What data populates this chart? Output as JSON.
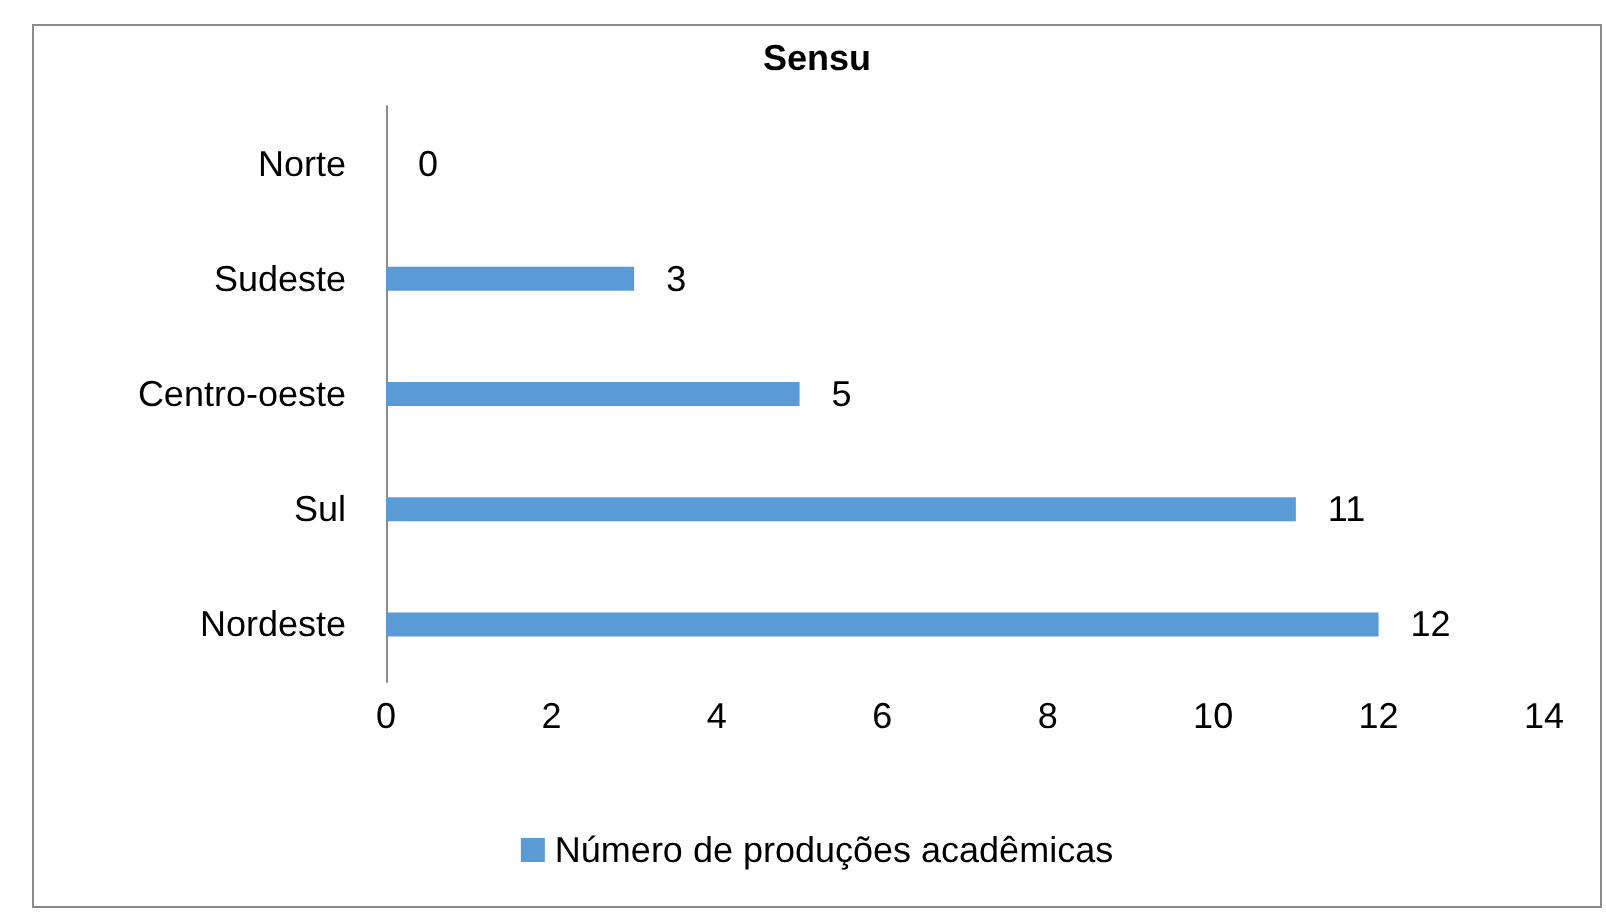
{
  "chart_data": {
    "type": "bar",
    "title": "Sensu",
    "orientation": "horizontal",
    "categories": [
      "Norte",
      "Sudeste",
      "Centro-oeste",
      "Sul",
      "Nordeste"
    ],
    "series": [
      {
        "name": "Número de produções acadêmicas",
        "color": "#5b9bd5",
        "values": [
          0,
          3,
          5,
          11,
          12
        ]
      }
    ],
    "xlim": [
      0,
      14
    ],
    "xticks": [
      0,
      2,
      4,
      6,
      8,
      10,
      12,
      14
    ],
    "grid": false,
    "legend": "bottom",
    "data_labels": true
  }
}
